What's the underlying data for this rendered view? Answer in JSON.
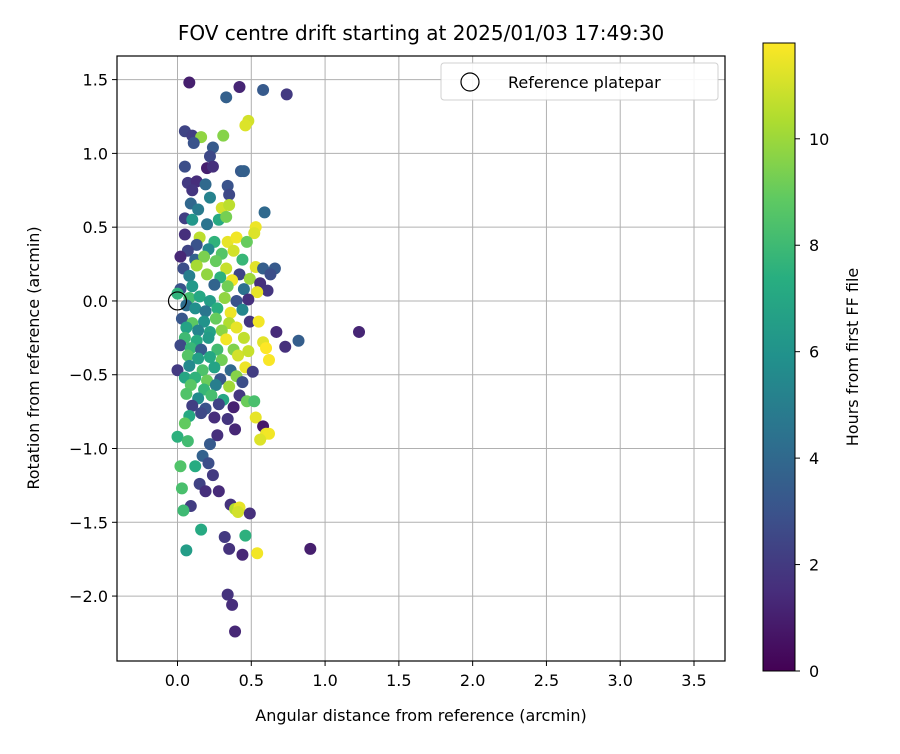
{
  "chart_data": {
    "type": "scatter",
    "title": "FOV centre drift starting at 2025/01/03 17:49:30",
    "xlabel": "Angular distance from reference (arcmin)",
    "ylabel": "Rotation from reference (arcmin)",
    "xlim": [
      -0.41,
      3.71
    ],
    "ylim": [
      -2.44,
      1.66
    ],
    "xticks": [
      0.0,
      0.5,
      1.0,
      1.5,
      2.0,
      2.5,
      3.0,
      3.5
    ],
    "xtick_labels": [
      "0.0",
      "0.5",
      "1.0",
      "1.5",
      "2.0",
      "2.5",
      "3.0",
      "3.5"
    ],
    "yticks": [
      1.5,
      1.0,
      0.5,
      0.0,
      -0.5,
      -1.0,
      -1.5,
      -2.0
    ],
    "ytick_labels": [
      "1.5",
      "1.0",
      "0.5",
      "0.0",
      "−0.5",
      "−1.0",
      "−1.5",
      "−2.0"
    ],
    "grid": true,
    "legend": {
      "position": "upper right",
      "entries": [
        "Reference platepar"
      ]
    },
    "reference_point": {
      "x": 0.0,
      "y": 0.0
    },
    "colorbar": {
      "label": "Hours from first FF file",
      "range": [
        0,
        11.8
      ],
      "ticks": [
        0,
        2,
        4,
        6,
        8,
        10
      ],
      "tick_labels": [
        "0",
        "2",
        "4",
        "6",
        "8",
        "10"
      ],
      "colormap": "viridis"
    },
    "points": [
      [
        0.08,
        1.48,
        1.0
      ],
      [
        0.42,
        1.45,
        1.2
      ],
      [
        0.58,
        1.43,
        3.3
      ],
      [
        0.74,
        1.4,
        2.0
      ],
      [
        0.33,
        1.38,
        3.6
      ],
      [
        0.05,
        1.15,
        2.4
      ],
      [
        0.1,
        1.12,
        2.2
      ],
      [
        0.16,
        1.11,
        9.8
      ],
      [
        0.31,
        1.12,
        9.6
      ],
      [
        0.48,
        1.22,
        11.0
      ],
      [
        0.46,
        1.19,
        11.2
      ],
      [
        0.11,
        1.07,
        3.0
      ],
      [
        0.24,
        1.04,
        3.3
      ],
      [
        0.22,
        0.98,
        2.6
      ],
      [
        0.05,
        0.91,
        2.8
      ],
      [
        0.2,
        0.9,
        1.0
      ],
      [
        0.24,
        0.91,
        1.6
      ],
      [
        0.43,
        0.88,
        3.3
      ],
      [
        0.45,
        0.88,
        3.6
      ],
      [
        0.07,
        0.8,
        2.0
      ],
      [
        0.13,
        0.81,
        1.5
      ],
      [
        0.19,
        0.79,
        4.0
      ],
      [
        0.34,
        0.78,
        3.0
      ],
      [
        0.35,
        0.72,
        2.6
      ],
      [
        0.1,
        0.75,
        1.8
      ],
      [
        0.22,
        0.7,
        5.2
      ],
      [
        0.09,
        0.66,
        3.9
      ],
      [
        0.14,
        0.62,
        4.8
      ],
      [
        0.3,
        0.63,
        11.0
      ],
      [
        0.35,
        0.65,
        10.6
      ],
      [
        0.59,
        0.6,
        4.0
      ],
      [
        0.05,
        0.56,
        2.2
      ],
      [
        0.1,
        0.55,
        6.2
      ],
      [
        0.2,
        0.52,
        4.5
      ],
      [
        0.28,
        0.55,
        7.1
      ],
      [
        0.33,
        0.57,
        9.3
      ],
      [
        0.53,
        0.5,
        11.5
      ],
      [
        0.52,
        0.46,
        11.2
      ],
      [
        0.05,
        0.45,
        1.6
      ],
      [
        0.15,
        0.43,
        10.6
      ],
      [
        0.25,
        0.4,
        7.6
      ],
      [
        0.34,
        0.4,
        11.4
      ],
      [
        0.4,
        0.43,
        11.6
      ],
      [
        0.47,
        0.4,
        9.0
      ],
      [
        0.13,
        0.38,
        3.0
      ],
      [
        0.07,
        0.34,
        2.4
      ],
      [
        0.21,
        0.35,
        5.5
      ],
      [
        0.3,
        0.32,
        8.6
      ],
      [
        0.38,
        0.34,
        11.0
      ],
      [
        0.02,
        0.3,
        1.3
      ],
      [
        0.12,
        0.28,
        3.7
      ],
      [
        0.18,
        0.3,
        9.4
      ],
      [
        0.26,
        0.27,
        9.0
      ],
      [
        0.44,
        0.28,
        7.8
      ],
      [
        0.53,
        0.23,
        11.3
      ],
      [
        0.58,
        0.22,
        3.5
      ],
      [
        0.66,
        0.22,
        3.3
      ],
      [
        0.04,
        0.22,
        2.8
      ],
      [
        0.13,
        0.24,
        10.2
      ],
      [
        0.33,
        0.22,
        10.8
      ],
      [
        0.42,
        0.18,
        2.4
      ],
      [
        0.63,
        0.18,
        2.8
      ],
      [
        0.08,
        0.17,
        5.0
      ],
      [
        0.2,
        0.18,
        9.8
      ],
      [
        0.29,
        0.16,
        7.5
      ],
      [
        0.37,
        0.14,
        11.6
      ],
      [
        0.49,
        0.15,
        10.0
      ],
      [
        0.56,
        0.12,
        1.6
      ],
      [
        0.02,
        0.08,
        3.0
      ],
      [
        0.1,
        0.1,
        6.3
      ],
      [
        0.25,
        0.11,
        3.8
      ],
      [
        0.34,
        0.1,
        9.2
      ],
      [
        0.45,
        0.08,
        4.4
      ],
      [
        0.61,
        0.07,
        1.8
      ],
      [
        0.54,
        0.06,
        11.4
      ],
      [
        0.0,
        0.05,
        7.6
      ],
      [
        0.08,
        0.02,
        8.2
      ],
      [
        0.15,
        0.03,
        7.0
      ],
      [
        0.22,
        0.0,
        6.5
      ],
      [
        0.32,
        0.02,
        9.8
      ],
      [
        0.4,
        0.0,
        3.0
      ],
      [
        0.48,
        0.01,
        1.6
      ],
      [
        0.06,
        -0.03,
        4.2
      ],
      [
        0.12,
        -0.05,
        5.8
      ],
      [
        0.19,
        -0.07,
        4.6
      ],
      [
        0.27,
        -0.05,
        7.4
      ],
      [
        0.36,
        -0.08,
        11.5
      ],
      [
        0.44,
        -0.06,
        5.4
      ],
      [
        0.03,
        -0.12,
        3.2
      ],
      [
        0.1,
        -0.15,
        8.8
      ],
      [
        0.18,
        -0.14,
        6.0
      ],
      [
        0.26,
        -0.12,
        9.0
      ],
      [
        0.35,
        -0.15,
        10.4
      ],
      [
        0.49,
        -0.14,
        1.8
      ],
      [
        0.06,
        -0.18,
        6.8
      ],
      [
        0.14,
        -0.2,
        5.3
      ],
      [
        0.22,
        -0.21,
        6.7
      ],
      [
        0.3,
        -0.2,
        9.7
      ],
      [
        0.4,
        -0.18,
        11.4
      ],
      [
        0.55,
        -0.14,
        11.6
      ],
      [
        0.05,
        -0.25,
        8.0
      ],
      [
        0.13,
        -0.27,
        7.2
      ],
      [
        0.21,
        -0.25,
        6.4
      ],
      [
        0.33,
        -0.26,
        11.6
      ],
      [
        0.45,
        -0.25,
        10.7
      ],
      [
        0.67,
        -0.21,
        1.4
      ],
      [
        0.02,
        -0.3,
        2.6
      ],
      [
        0.09,
        -0.32,
        7.8
      ],
      [
        0.16,
        -0.33,
        3.4
      ],
      [
        0.27,
        -0.33,
        8.1
      ],
      [
        0.38,
        -0.33,
        9.5
      ],
      [
        0.58,
        -0.28,
        11.3
      ],
      [
        0.6,
        -0.32,
        11.8
      ],
      [
        0.73,
        -0.31,
        1.6
      ],
      [
        0.82,
        -0.27,
        3.5
      ],
      [
        1.23,
        -0.21,
        1.2
      ],
      [
        0.07,
        -0.37,
        8.6
      ],
      [
        0.14,
        -0.39,
        6.6
      ],
      [
        0.22,
        -0.38,
        7.0
      ],
      [
        0.3,
        -0.4,
        9.2
      ],
      [
        0.41,
        -0.37,
        11.0
      ],
      [
        0.48,
        -0.34,
        10.8
      ],
      [
        0.62,
        -0.4,
        11.7
      ],
      [
        0.0,
        -0.47,
        2.0
      ],
      [
        0.08,
        -0.44,
        5.5
      ],
      [
        0.17,
        -0.47,
        8.4
      ],
      [
        0.25,
        -0.45,
        6.8
      ],
      [
        0.36,
        -0.47,
        4.0
      ],
      [
        0.46,
        -0.45,
        11.5
      ],
      [
        0.05,
        -0.52,
        6.9
      ],
      [
        0.12,
        -0.52,
        7.6
      ],
      [
        0.2,
        -0.54,
        9.1
      ],
      [
        0.29,
        -0.53,
        3.2
      ],
      [
        0.4,
        -0.51,
        9.6
      ],
      [
        0.51,
        -0.48,
        2.1
      ],
      [
        0.09,
        -0.57,
        8.7
      ],
      [
        0.18,
        -0.6,
        7.8
      ],
      [
        0.26,
        -0.57,
        5.0
      ],
      [
        0.35,
        -0.58,
        10.1
      ],
      [
        0.44,
        -0.55,
        2.8
      ],
      [
        0.06,
        -0.63,
        8.5
      ],
      [
        0.14,
        -0.66,
        5.6
      ],
      [
        0.23,
        -0.64,
        8.2
      ],
      [
        0.31,
        -0.67,
        7.0
      ],
      [
        0.42,
        -0.64,
        1.9
      ],
      [
        0.1,
        -0.71,
        2.2
      ],
      [
        0.19,
        -0.73,
        3.0
      ],
      [
        0.28,
        -0.7,
        2.4
      ],
      [
        0.38,
        -0.72,
        1.1
      ],
      [
        0.47,
        -0.68,
        9.1
      ],
      [
        0.52,
        -0.68,
        8.3
      ],
      [
        0.08,
        -0.78,
        7.1
      ],
      [
        0.16,
        -0.76,
        2.6
      ],
      [
        0.25,
        -0.79,
        1.5
      ],
      [
        0.34,
        -0.8,
        1.8
      ],
      [
        0.53,
        -0.79,
        11.4
      ],
      [
        0.05,
        -0.83,
        8.9
      ],
      [
        0.39,
        -0.87,
        1.3
      ],
      [
        0.58,
        -0.85,
        0.8
      ],
      [
        0.6,
        -0.9,
        11.5
      ],
      [
        0.62,
        -0.9,
        11.6
      ],
      [
        0.0,
        -0.92,
        7.5
      ],
      [
        0.07,
        -0.95,
        8.1
      ],
      [
        0.22,
        -0.97,
        3.3
      ],
      [
        0.27,
        -0.91,
        1.6
      ],
      [
        0.56,
        -0.94,
        11.2
      ],
      [
        0.17,
        -1.05,
        3.7
      ],
      [
        0.02,
        -1.12,
        8.5
      ],
      [
        0.12,
        -1.12,
        7.2
      ],
      [
        0.21,
        -1.1,
        2.8
      ],
      [
        0.24,
        -1.18,
        2.0
      ],
      [
        0.15,
        -1.24,
        2.3
      ],
      [
        0.03,
        -1.27,
        8.3
      ],
      [
        0.19,
        -1.29,
        1.6
      ],
      [
        0.28,
        -1.29,
        1.4
      ],
      [
        0.09,
        -1.39,
        2.1
      ],
      [
        0.36,
        -1.38,
        1.7
      ],
      [
        0.04,
        -1.42,
        8.0
      ],
      [
        0.39,
        -1.41,
        10.5
      ],
      [
        0.42,
        -1.4,
        11.4
      ],
      [
        0.41,
        -1.43,
        11.0
      ],
      [
        0.49,
        -1.44,
        1.6
      ],
      [
        0.16,
        -1.55,
        7.1
      ],
      [
        0.32,
        -1.6,
        2.0
      ],
      [
        0.46,
        -1.59,
        7.5
      ],
      [
        0.06,
        -1.69,
        6.5
      ],
      [
        0.35,
        -1.68,
        1.7
      ],
      [
        0.44,
        -1.72,
        1.3
      ],
      [
        0.54,
        -1.71,
        11.6
      ],
      [
        0.9,
        -1.68,
        1.0
      ],
      [
        0.34,
        -1.99,
        1.7
      ],
      [
        0.37,
        -2.06,
        1.5
      ],
      [
        0.39,
        -2.24,
        1.3
      ]
    ]
  }
}
